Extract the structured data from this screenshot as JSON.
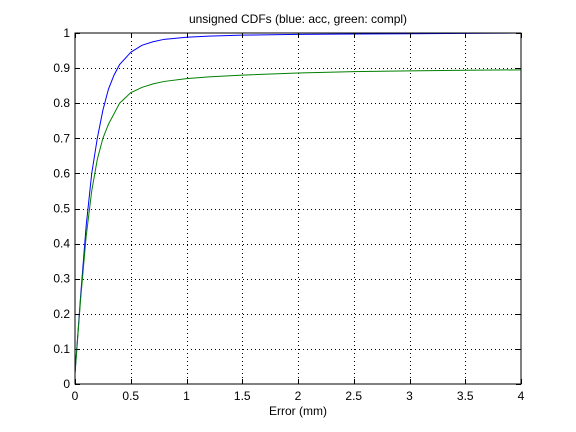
{
  "chart_data": {
    "type": "line",
    "title": "unsigned CDFs (blue: acc, green: compl)",
    "xlabel": "Error (mm)",
    "ylabel": "",
    "xlim": [
      0,
      4
    ],
    "ylim": [
      0,
      1
    ],
    "grid": true,
    "x_ticks": [
      "0",
      "0.5",
      "1",
      "1.5",
      "2",
      "2.5",
      "3",
      "3.5",
      "4"
    ],
    "y_ticks": [
      "0",
      "0.1",
      "0.2",
      "0.3",
      "0.4",
      "0.5",
      "0.6",
      "0.7",
      "0.8",
      "0.9",
      "1"
    ],
    "series": [
      {
        "color": "#0000ff",
        "x": [
          0,
          0.05,
          0.1,
          0.15,
          0.2,
          0.25,
          0.3,
          0.35,
          0.4,
          0.5,
          0.6,
          0.7,
          0.8,
          1.0,
          1.2,
          1.5,
          2.0,
          2.5,
          3.0,
          3.5,
          4.0
        ],
        "y": [
          0.03,
          0.25,
          0.45,
          0.6,
          0.7,
          0.78,
          0.84,
          0.88,
          0.91,
          0.945,
          0.965,
          0.975,
          0.982,
          0.988,
          0.991,
          0.994,
          0.996,
          0.997,
          0.998,
          0.999,
          1.0
        ]
      },
      {
        "color": "#008000",
        "x": [
          0,
          0.05,
          0.1,
          0.15,
          0.2,
          0.25,
          0.3,
          0.35,
          0.4,
          0.5,
          0.6,
          0.7,
          0.8,
          1.0,
          1.2,
          1.5,
          2.0,
          2.5,
          3.0,
          3.5,
          4.0
        ],
        "y": [
          0.03,
          0.24,
          0.42,
          0.55,
          0.64,
          0.7,
          0.74,
          0.77,
          0.8,
          0.83,
          0.845,
          0.855,
          0.862,
          0.87,
          0.875,
          0.88,
          0.886,
          0.89,
          0.892,
          0.894,
          0.895
        ]
      }
    ]
  }
}
